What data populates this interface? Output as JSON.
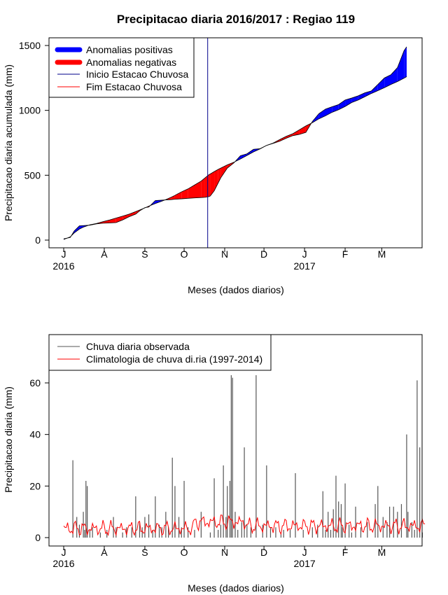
{
  "chart_data": [
    {
      "type": "area",
      "title": "Precipitacao diaria 2016/2017 : Regiao 119",
      "xlabel": "Meses (dados diarios)",
      "ylabel": "Precipitacao diaria acumulada (mm)",
      "ylim": [
        0,
        1600
      ],
      "y_ticks": [
        0,
        500,
        1000,
        1500
      ],
      "x_ticks": [
        "J",
        "A",
        "S",
        "O",
        "N",
        "D",
        "J",
        "F",
        "M"
      ],
      "year_labels": [
        "2016",
        "2017"
      ],
      "legend": {
        "position": "top-left",
        "entries": [
          "Anomalias positivas",
          "Anomalias negativas",
          "Inicio Estacao Chuvosa",
          "Fim Estacao Chuvosa"
        ]
      },
      "rainy_season_start_day": 110,
      "colors": {
        "positive": "#0000ff",
        "negative": "#ff0000",
        "start_line": "#00008b",
        "end_line": "#ff0000"
      },
      "observed_cumulative": {
        "days": [
          0,
          5,
          8,
          12,
          15,
          20,
          25,
          30,
          35,
          40,
          45,
          50,
          55,
          58,
          62,
          65,
          70,
          75,
          78,
          82,
          85,
          90,
          95,
          100,
          105,
          108,
          111,
          112,
          115,
          118,
          120,
          125,
          130,
          135,
          140,
          145,
          150,
          155,
          160,
          165,
          170,
          175,
          180,
          185,
          190,
          195,
          200,
          205,
          210,
          215,
          220,
          225,
          230,
          235,
          240,
          245,
          250,
          255,
          260,
          262
        ],
        "values": [
          10,
          20,
          70,
          110,
          112,
          115,
          125,
          130,
          132,
          135,
          155,
          180,
          200,
          225,
          250,
          255,
          305,
          308,
          310,
          312,
          315,
          318,
          322,
          325,
          328,
          330,
          335,
          340,
          380,
          440,
          480,
          555,
          595,
          650,
          665,
          700,
          705,
          730,
          745,
          762,
          785,
          805,
          815,
          830,
          915,
          975,
          1010,
          1028,
          1045,
          1080,
          1095,
          1112,
          1135,
          1150,
          1200,
          1250,
          1275,
          1330,
          1460,
          1490
        ]
      },
      "climatology_cumulative": {
        "days": [
          0,
          5,
          8,
          12,
          15,
          20,
          25,
          30,
          35,
          40,
          45,
          50,
          55,
          58,
          62,
          65,
          70,
          75,
          78,
          82,
          85,
          90,
          95,
          100,
          105,
          108,
          111,
          112,
          115,
          118,
          120,
          125,
          130,
          135,
          140,
          145,
          150,
          155,
          160,
          165,
          170,
          175,
          180,
          185,
          190,
          195,
          200,
          205,
          210,
          215,
          220,
          225,
          230,
          235,
          240,
          245,
          250,
          255,
          260,
          262
        ],
        "values": [
          5,
          25,
          55,
          85,
          100,
          118,
          128,
          142,
          155,
          170,
          185,
          200,
          220,
          232,
          248,
          262,
          282,
          300,
          312,
          330,
          345,
          372,
          395,
          425,
          455,
          480,
          505,
          510,
          528,
          545,
          555,
          580,
          600,
          625,
          652,
          680,
          703,
          730,
          748,
          775,
          800,
          820,
          850,
          880,
          905,
          935,
          958,
          985,
          1005,
          1030,
          1060,
          1080,
          1105,
          1130,
          1152,
          1175,
          1200,
          1222,
          1248,
          1260
        ]
      }
    },
    {
      "type": "bar",
      "xlabel": "Meses (dados diarios)",
      "ylabel": "Precipitacao diaria (mm)",
      "ylim": [
        0,
        75
      ],
      "y_ticks": [
        0,
        20,
        40,
        60
      ],
      "x_ticks": [
        "J",
        "A",
        "S",
        "O",
        "N",
        "D",
        "J",
        "F",
        "M"
      ],
      "year_labels": [
        "2016",
        "2017"
      ],
      "legend": {
        "position": "top-left",
        "entries": [
          "Chuva diaria observada",
          "Climatologia de chuva di.ria (1997-2014)"
        ]
      },
      "colors": {
        "observed": "#555555",
        "climatology": "#ff0000"
      },
      "observed_daily": {
        "days": [
          7,
          10,
          12,
          15,
          16,
          17,
          18,
          20,
          22,
          28,
          33,
          38,
          40,
          45,
          48,
          52,
          55,
          58,
          60,
          62,
          65,
          68,
          70,
          73,
          75,
          78,
          80,
          83,
          85,
          88,
          90,
          92,
          95,
          100,
          105,
          112,
          115,
          118,
          120,
          122,
          124,
          125,
          127,
          128,
          129,
          131,
          133,
          136,
          138,
          140,
          143,
          147,
          152,
          155,
          158,
          162,
          166,
          168,
          173,
          177,
          183,
          190,
          194,
          198,
          200,
          202,
          204,
          206,
          208,
          210,
          212,
          213,
          215,
          218,
          220,
          223,
          227,
          232,
          238,
          240,
          244,
          247,
          249,
          252,
          255,
          258,
          262,
          263,
          266,
          268,
          270,
          272,
          274
        ],
        "values": [
          30,
          8,
          5,
          10,
          3,
          22,
          20,
          3,
          4,
          2,
          3,
          8,
          4,
          2,
          4,
          4,
          16,
          6,
          4,
          8,
          9,
          3,
          16,
          5,
          4,
          10,
          4,
          31,
          20,
          8,
          4,
          22,
          4,
          3,
          10,
          2,
          23,
          3,
          5,
          28,
          8,
          20,
          22,
          63,
          62,
          10,
          3,
          6,
          35,
          5,
          4,
          63,
          5,
          28,
          4,
          4,
          2,
          3,
          3,
          25,
          3,
          4,
          5,
          18,
          3,
          10,
          3,
          11,
          24,
          14,
          13,
          4,
          21,
          5,
          2,
          12,
          4,
          6,
          13,
          20,
          8,
          6,
          12,
          12,
          10,
          13,
          40,
          10,
          6,
          3,
          61,
          35,
          2
        ]
      },
      "climatology_daily_range": [
        1,
        12
      ]
    }
  ]
}
